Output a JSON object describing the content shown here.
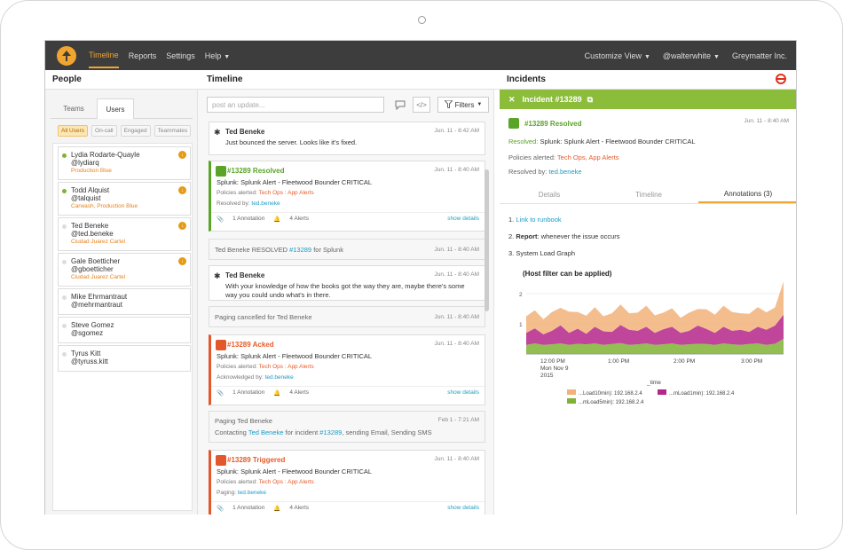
{
  "nav": {
    "items": [
      "Timeline",
      "Reports",
      "Settings",
      "Help"
    ],
    "customize": "Customize View",
    "user": "@walterwhite",
    "org": "Greymatter Inc."
  },
  "columns": {
    "people": "People",
    "timeline": "Timeline",
    "incidents": "Incidents"
  },
  "people": {
    "tabs": [
      "Teams",
      "Users"
    ],
    "filters": [
      "All Users",
      "On-call",
      "Engaged",
      "Teammates"
    ],
    "users": [
      {
        "name": "Lydia Rodarte-Quayle",
        "handle": "@lydiarq",
        "team": "Production Blue"
      },
      {
        "name": "Todd Alquist",
        "handle": "@talquist",
        "team": "Carwash, Production Blue"
      },
      {
        "name": "Ted Beneke",
        "handle": "@ted.beneke",
        "team": "Ciudad Juarez Cartel"
      },
      {
        "name": "Gale Boetticher",
        "handle": "@gboetticher",
        "team": "Ciudad Juarez Cartel"
      },
      {
        "name": "Mike Ehrmantraut",
        "handle": "@mehrmantraut"
      },
      {
        "name": "Steve Gomez",
        "handle": "@sgomez"
      },
      {
        "name": "Tyrus Kitt",
        "handle": "@tyruss.kitt"
      }
    ]
  },
  "timeline": {
    "post_placeholder": "post an update...",
    "filters_label": "Filters",
    "c1": {
      "author": "Ted Beneke",
      "time": "Jun. 11 - 8:42 AM",
      "text": "Just bounced the server. Looks like it's fixed."
    },
    "c2": {
      "title": "#13289 Resolved",
      "time": "Jun. 11 - 8:40 AM",
      "summary": "Splunk: Splunk Alert - Fleetwood Bounder CRITICAL",
      "policies_label": "Policies alerted:",
      "policies": "Tech Ops : App Alerts",
      "by_label": "Resolved by:",
      "by": "ted.beneke",
      "annotations": "1 Annotation",
      "alerts": "4 Alerts",
      "show": "show details"
    },
    "c3": {
      "pre": "Ted Beneke RESOLVED ",
      "id": "#13289",
      "post": " for Splunk",
      "time": "Jun. 11 - 8:40 AM"
    },
    "c4": {
      "author": "Ted Beneke",
      "time": "Jun. 11 - 8:40 AM",
      "text": "With your knowledge of how the books got the way they are, maybe there's some way you could undo what's in there."
    },
    "c5": {
      "text": "Paging cancelled for Ted Beneke",
      "time": "Jun. 11 - 8:40 AM"
    },
    "c6": {
      "title": "#13289 Acked",
      "time": "Jun. 11 - 8:40 AM",
      "summary": "Splunk: Splunk Alert - Fleetwood Bounder CRITICAL",
      "policies_label": "Policies alerted:",
      "policies": "Tech Ops : App Alerts",
      "by_label": "Acknowledged by:",
      "by": "ted.beneke",
      "annotations": "1 Annotation",
      "alerts": "4 Alerts",
      "show": "show details"
    },
    "c7": {
      "title": "Paging Ted Beneke",
      "time": "Feb 1 - 7:21 AM",
      "pre": "Contacting ",
      "who": "Ted Beneke",
      "mid": " for incident ",
      "id": "#13289",
      "post": ", sending Email, Sending SMS"
    },
    "c8": {
      "title": "#13289 Triggered",
      "time": "Jun. 11 - 8:40 AM",
      "summary": "Splunk: Splunk Alert - Fleetwood Bounder CRITICAL",
      "policies_label": "Policies alerted:",
      "policies": "Tech Ops : App Alerts",
      "by_label": "Paging:",
      "by": "ted.beneke",
      "annotations": "1 Annotation",
      "alerts": "4 Alerts",
      "show": "show details"
    }
  },
  "incident": {
    "title": "Incident #13289",
    "status": "#13289 Resolved",
    "time": "Jun. 11 - 8:40 AM",
    "resolved_label": "Resolved:",
    "resolved": "Splunk: Splunk Alert - Fleetwood Bounder CRITICAL",
    "policies_label": "Policies alerted:",
    "policies": "Tech Ops, App Alerts",
    "by_label": "Resolved by:",
    "by": "ted.beneke",
    "tabs": [
      "Details",
      "Timeline",
      "Annotations (3)"
    ],
    "ann1_link": "Link to runbook",
    "ann2_bold": "Report",
    "ann2_rest": ": whenever the issue occurs",
    "ann3": "System Load Graph",
    "num1": "1.",
    "num2": "2.",
    "num3": "3."
  },
  "chart_data": {
    "type": "area",
    "title": "(Host filter can be applied)",
    "xlabel": "_time",
    "x_ticks": [
      "12:00 PM\nMon Nov 9\n2015",
      "1:00 PM",
      "2:00 PM",
      "3:00 PM"
    ],
    "y_ticks": [
      "2",
      "1"
    ],
    "ylim": [
      0,
      2
    ],
    "series": [
      {
        "name": "...Load10min): 192.168.2.4",
        "color": "#f2b27a",
        "values": [
          0.55,
          0.6,
          0.5,
          0.62,
          0.58,
          0.7,
          0.55,
          0.6,
          0.65,
          0.5,
          0.62,
          0.68,
          0.55,
          0.6,
          0.7,
          0.58,
          0.55,
          0.62,
          0.5,
          0.6,
          0.55,
          0.65,
          0.6,
          0.7,
          0.62,
          0.55,
          0.6,
          0.65,
          0.58,
          0.6,
          1.1
        ]
      },
      {
        "name": "...mLoad1min): 192.168.2.4",
        "color": "#b5268a",
        "values": [
          0.4,
          0.5,
          0.35,
          0.45,
          0.6,
          0.4,
          0.5,
          0.35,
          0.55,
          0.45,
          0.4,
          0.6,
          0.5,
          0.45,
          0.55,
          0.4,
          0.5,
          0.55,
          0.4,
          0.45,
          0.6,
          0.5,
          0.4,
          0.55,
          0.45,
          0.5,
          0.4,
          0.55,
          0.5,
          0.6,
          0.8
        ]
      },
      {
        "name": "...mLoad5min): 192.168.2.4",
        "color": "#7fb335",
        "values": [
          0.3,
          0.35,
          0.3,
          0.32,
          0.35,
          0.3,
          0.34,
          0.32,
          0.35,
          0.3,
          0.33,
          0.36,
          0.3,
          0.32,
          0.35,
          0.3,
          0.32,
          0.35,
          0.3,
          0.32,
          0.34,
          0.33,
          0.3,
          0.35,
          0.32,
          0.3,
          0.33,
          0.35,
          0.3,
          0.34,
          0.5
        ]
      }
    ],
    "colors": {
      "accent": "#f0a531",
      "green": "#8bbd3a",
      "link": "#1a9bc7",
      "alert": "#e55b2b"
    }
  }
}
